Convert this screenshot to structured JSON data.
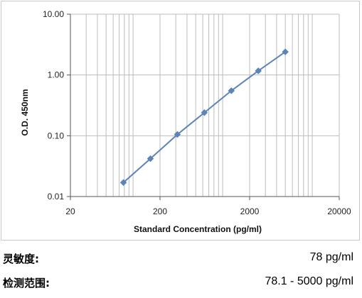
{
  "chart_data": {
    "type": "line",
    "xscale": "log",
    "yscale": "log",
    "xlabel": "Standard Concentration (pg/ml)",
    "ylabel": "O.D.  450nm",
    "xlim": [
      20,
      20000
    ],
    "ylim": [
      0.01,
      10
    ],
    "x_ticks": [
      "20",
      "200",
      "2000",
      "20000"
    ],
    "x_tick_values": [
      20,
      200,
      2000,
      20000
    ],
    "y_ticks": [
      "0.01",
      "0.10",
      "1.00",
      "10.00"
    ],
    "y_tick_values": [
      0.01,
      0.1,
      1,
      10
    ],
    "grid": true,
    "series": [
      {
        "color": "#5b84b7",
        "marker": "diamond",
        "x": [
          78.1,
          156.25,
          312.5,
          625,
          1250,
          2500,
          5000
        ],
        "y": [
          0.017,
          0.042,
          0.105,
          0.24,
          0.55,
          1.17,
          2.4
        ]
      }
    ]
  },
  "info": {
    "sensitivity_label": "灵敏度:",
    "sensitivity_value": "78 pg/ml",
    "range_label": "检测范围:",
    "range_value": "78.1 - 5000 pg/ml"
  }
}
